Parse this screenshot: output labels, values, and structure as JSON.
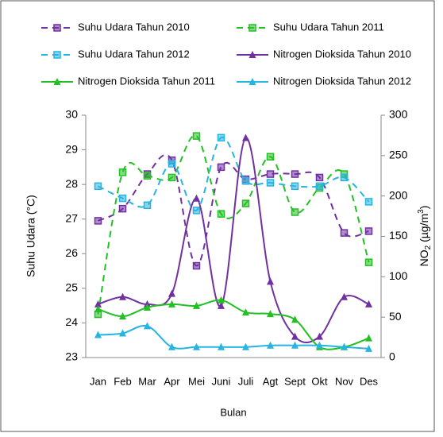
{
  "chart_data": {
    "type": "line",
    "x_label": "Bulan",
    "y_label": "Suhu Udara (°C)",
    "y2_label": [
      "NO",
      "2",
      " (µg/m",
      "3",
      ")"
    ],
    "categories": [
      "Jan",
      "Feb",
      "Mar",
      "Apr",
      "Mei",
      "Juni",
      "Juli",
      "Agt",
      "Sept",
      "Okt",
      "Nov",
      "Des"
    ],
    "ylim": [
      23,
      30
    ],
    "yticks": [
      23,
      24,
      25,
      26,
      27,
      28,
      29,
      30
    ],
    "y2lim": [
      0,
      300
    ],
    "y2ticks": [
      0,
      50,
      100,
      150,
      200,
      250,
      300
    ],
    "series": [
      {
        "name": "Suhu Udara Tahun 2010",
        "color": "#7030a0",
        "style": "dashed",
        "marker": "square",
        "values": [
          26.95,
          27.3,
          28.3,
          28.7,
          25.65,
          28.5,
          28.15,
          28.3,
          28.3,
          28.2,
          26.6,
          26.65
        ]
      },
      {
        "name": "Suhu Udara Tahun 2011",
        "color": "#22c022",
        "style": "dashed",
        "marker": "square",
        "values": [
          24.25,
          28.35,
          28.25,
          28.2,
          29.4,
          27.15,
          27.45,
          28.8,
          27.2,
          27.9,
          28.3,
          25.75
        ]
      },
      {
        "name": "Suhu Udara Tahun 2012",
        "color": "#26b4e0",
        "style": "dashed",
        "marker": "square",
        "values": [
          27.95,
          27.6,
          27.4,
          28.6,
          27.25,
          29.35,
          28.1,
          28.05,
          27.95,
          27.95,
          28.2,
          27.5
        ]
      },
      {
        "name": "Nitrogen Dioksida Tahun 2010",
        "color": "#7030a0",
        "style": "solid",
        "marker": "triangle",
        "axis": "y2",
        "values": [
          66,
          75,
          66,
          79,
          197,
          64,
          272,
          94,
          26,
          26,
          75,
          66
        ]
      },
      {
        "name": "Nitrogen Dioksida Tahun 2011",
        "color": "#22c022",
        "style": "solid",
        "marker": "triangle",
        "axis": "y2",
        "values": [
          60,
          51,
          62,
          66,
          64,
          71,
          56,
          54,
          47,
          13,
          13,
          24
        ]
      },
      {
        "name": "Nitrogen Dioksida Tahun 2012",
        "color": "#26b4e0",
        "style": "solid",
        "marker": "triangle",
        "axis": "y2",
        "values": [
          28,
          30,
          39,
          13,
          13,
          13,
          13,
          15,
          15,
          15,
          13,
          11
        ]
      }
    ]
  }
}
